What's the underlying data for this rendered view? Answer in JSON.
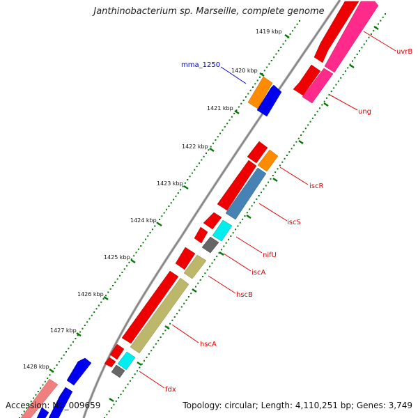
{
  "title": "Janthinobacterium sp. Marseille, complete genome",
  "accession": "Accession: NC_009659",
  "topology": "Topology: circular; Length: 4,110,251 bp; Genes: 3,749",
  "kbp_labels": [
    {
      "text": "1419 kbp"
    },
    {
      "text": "1420 kbp"
    },
    {
      "text": "1421 kbp"
    },
    {
      "text": "1422 kbp"
    },
    {
      "text": "1423 kbp"
    },
    {
      "text": "1424 kbp"
    },
    {
      "text": "1425 kbp"
    },
    {
      "text": "1426 kbp"
    },
    {
      "text": "1427 kbp"
    },
    {
      "text": "1428 kbp"
    }
  ],
  "gene_labels": [
    {
      "name": "uvrB",
      "color": "#dd0000"
    },
    {
      "name": "ung",
      "color": "#dd0000"
    },
    {
      "name": "mma_1250",
      "color": "#0000cc"
    },
    {
      "name": "iscR",
      "color": "#dd0000"
    },
    {
      "name": "iscS",
      "color": "#dd0000"
    },
    {
      "name": "nifU",
      "color": "#dd0000"
    },
    {
      "name": "iscA",
      "color": "#dd0000"
    },
    {
      "name": "hscB",
      "color": "#dd0000"
    },
    {
      "name": "hscA",
      "color": "#dd0000"
    },
    {
      "name": "fdx",
      "color": "#dd0000"
    }
  ],
  "colors": {
    "cds_red": "#ee0000",
    "cds_pink": "#ff2a8a",
    "orange": "#ff8c00",
    "blue": "#0000ee",
    "cyan": "#00eeee",
    "steelblue": "#4682b4",
    "olive": "#bdb76b",
    "gray": "#666666",
    "lightpink": "#f08080",
    "tick_green": "#007700",
    "backbone": "#888888"
  }
}
